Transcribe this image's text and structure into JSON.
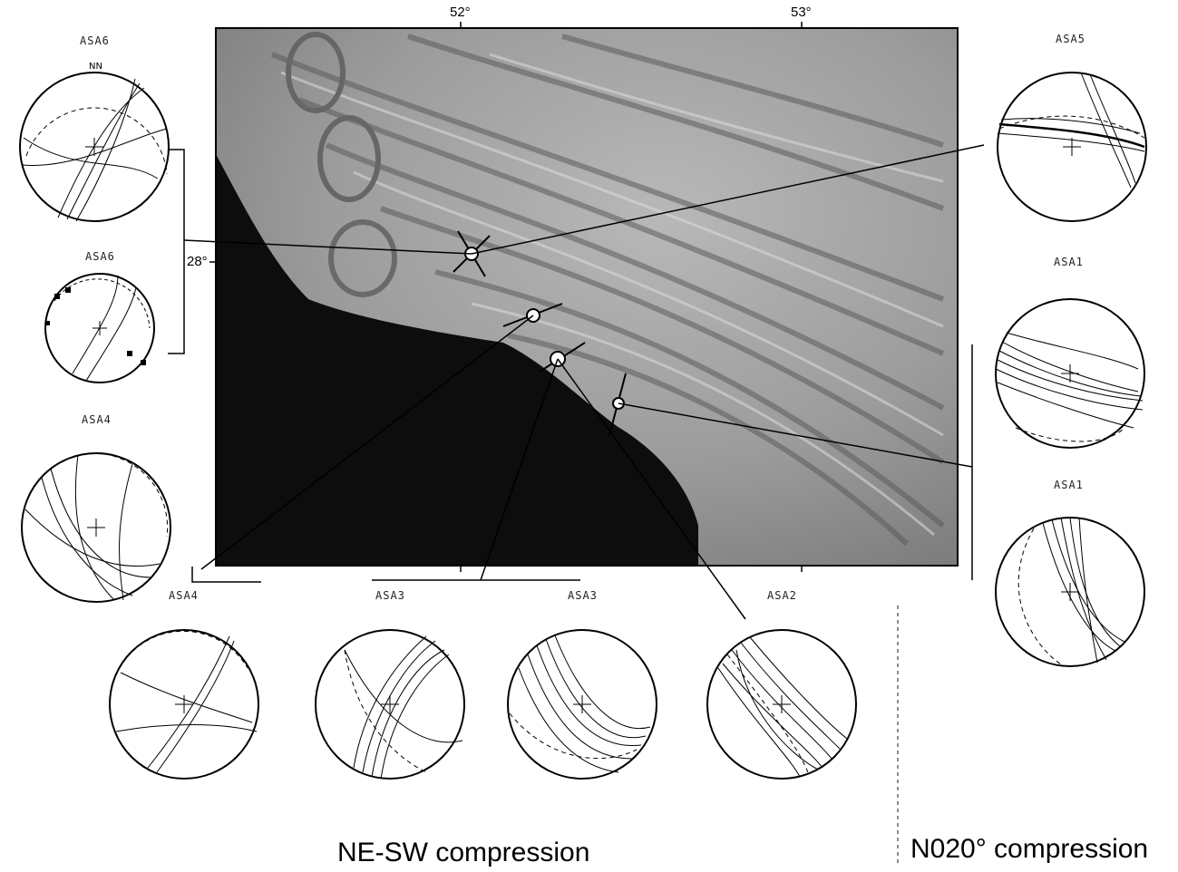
{
  "figure": {
    "longitude_labels": [
      "52°",
      "53°"
    ],
    "latitude_label": "28°",
    "north_mark": "N",
    "caption_left": "NE-SW compression",
    "caption_right": "N020° compression"
  },
  "nets": [
    {
      "id": "asa6-a",
      "label": "ASA6"
    },
    {
      "id": "asa6-b",
      "label": "ASA6"
    },
    {
      "id": "asa4-a",
      "label": "ASA4"
    },
    {
      "id": "asa4-b",
      "label": "ASA4"
    },
    {
      "id": "asa3-a",
      "label": "ASA3"
    },
    {
      "id": "asa3-b",
      "label": "ASA3"
    },
    {
      "id": "asa2",
      "label": "ASA2"
    },
    {
      "id": "asa5",
      "label": "ASA5"
    },
    {
      "id": "asa1-a",
      "label": "ASA1"
    },
    {
      "id": "asa1-b",
      "label": "ASA1"
    }
  ]
}
